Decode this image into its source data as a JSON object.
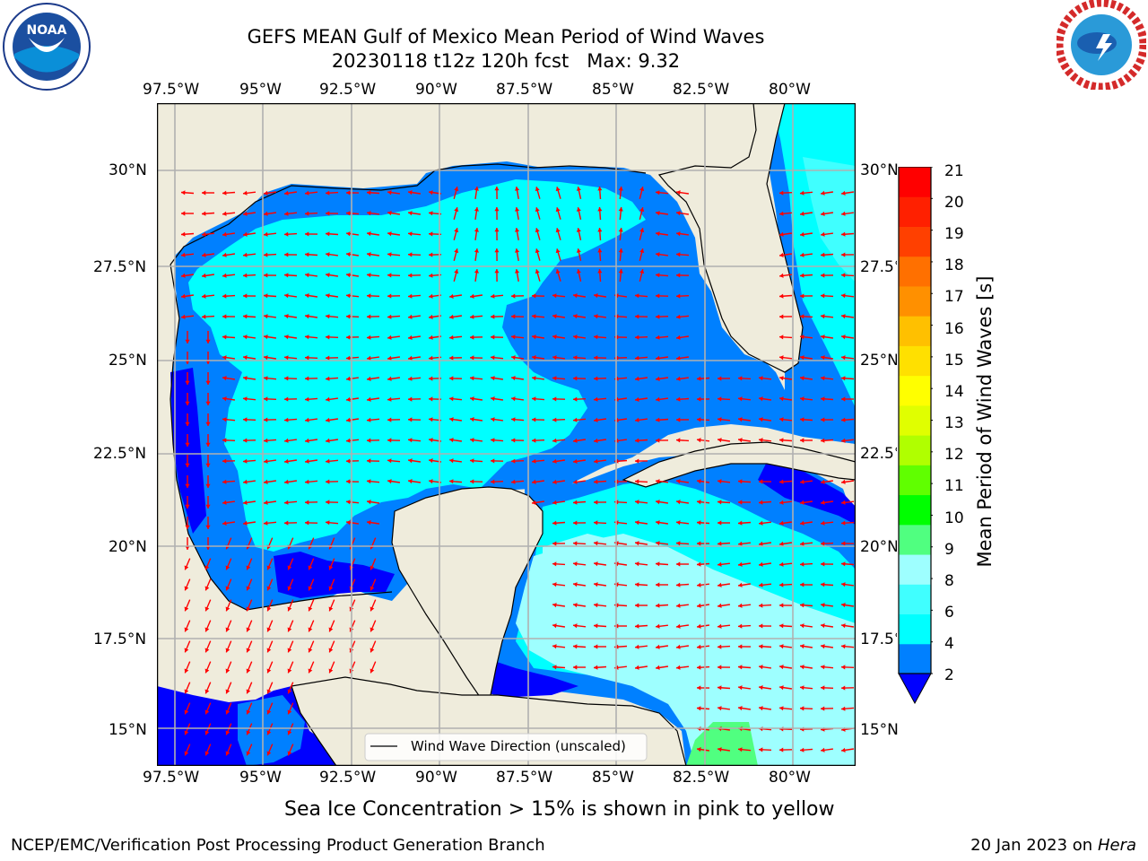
{
  "header": {
    "title_line1": "GEFS MEAN Gulf of Mexico Mean Period of Wind Waves",
    "title_line2": "20230118 t12z 120h fcst   Max: 9.32"
  },
  "logos": {
    "left": {
      "text": "NOAA",
      "ring": "NATIONAL OCEANIC AND ATMOSPHERIC ADMINISTRATION · U.S. DEPARTMENT OF COMMERCE"
    },
    "right": {
      "ring": "NATIONAL WEATHER SERVICE"
    }
  },
  "map": {
    "x_ticks": [
      "97.5°W",
      "95°W",
      "92.5°W",
      "90°W",
      "87.5°W",
      "85°W",
      "82.5°W",
      "80°W"
    ],
    "y_ticks_left": [
      "30°N",
      "27.5°N",
      "25°N",
      "22.5°N",
      "20°N",
      "17.5°N",
      "15°N"
    ],
    "y_ticks_right": [
      "30°N",
      "27.5°N",
      "25°N",
      "22.5°N",
      "20°N",
      "17.5°N",
      "15°N"
    ],
    "legend_label": "Wind Wave Direction (unscaled)",
    "colors": {
      "land": "#efecdc",
      "grid": "#b0b0b0",
      "arrow": "#ff0000"
    }
  },
  "colorbar": {
    "label": "Mean Period of Wind Waves [s]",
    "ticks": [
      "21",
      "20",
      "19",
      "18",
      "17",
      "16",
      "15",
      "14",
      "13",
      "12",
      "11",
      "10",
      "9",
      "8",
      "6",
      "4",
      "2"
    ],
    "bands": [
      "#0000ff",
      "#0080ff",
      "#00ffff",
      "#40ffff",
      "#9effff",
      "#50ff80",
      "#00ff00",
      "#60ff00",
      "#b0ff00",
      "#e0ff00",
      "#ffff00",
      "#ffe000",
      "#ffc000",
      "#ff9000",
      "#ff7000",
      "#ff4000",
      "#ff2000",
      "#ff0000"
    ]
  },
  "caption": "Sea Ice Concentration > 15% is shown in pink to yellow",
  "footer": {
    "left": "NCEP/EMC/Verification Post Processing Product Generation Branch",
    "right_date": "20 Jan 2023 on ",
    "right_host": "Hera"
  }
}
